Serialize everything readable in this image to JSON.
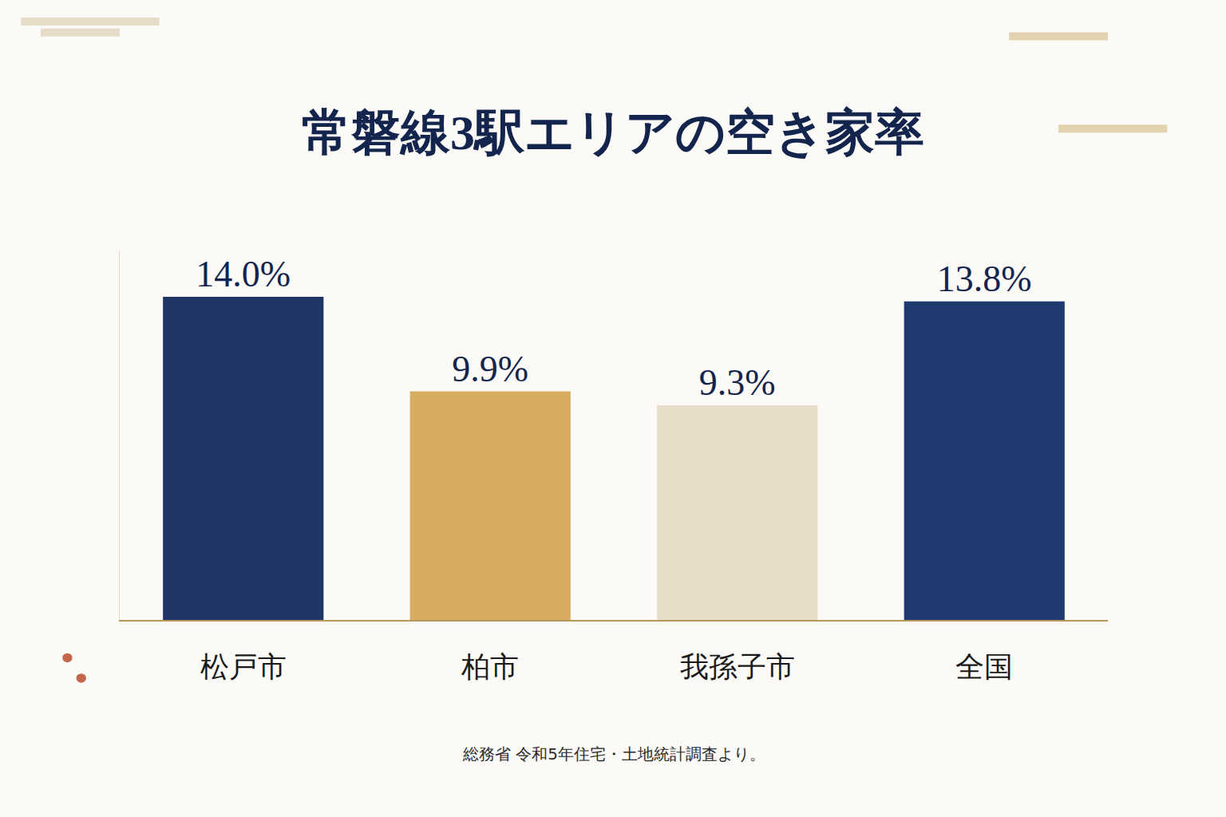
{
  "chart_data": {
    "type": "bar",
    "title": "常磐線3駅エリアの空き家率",
    "categories": [
      "松戸市",
      "柏市",
      "我孫子市",
      "全国"
    ],
    "values": [
      14.0,
      9.9,
      9.3,
      13.8
    ],
    "value_labels": [
      "14.0%",
      "9.9%",
      "9.3%",
      "13.8%"
    ],
    "colors": [
      "#1f3565",
      "#d6ab62",
      "#e7ddc8",
      "#1f3a6f"
    ],
    "data_labels": true,
    "tick_labels": "x",
    "grid": false,
    "ylim": [
      0,
      16
    ],
    "annotations": [
      "総務省 令和5年住宅・土地統計調査より。"
    ]
  }
}
